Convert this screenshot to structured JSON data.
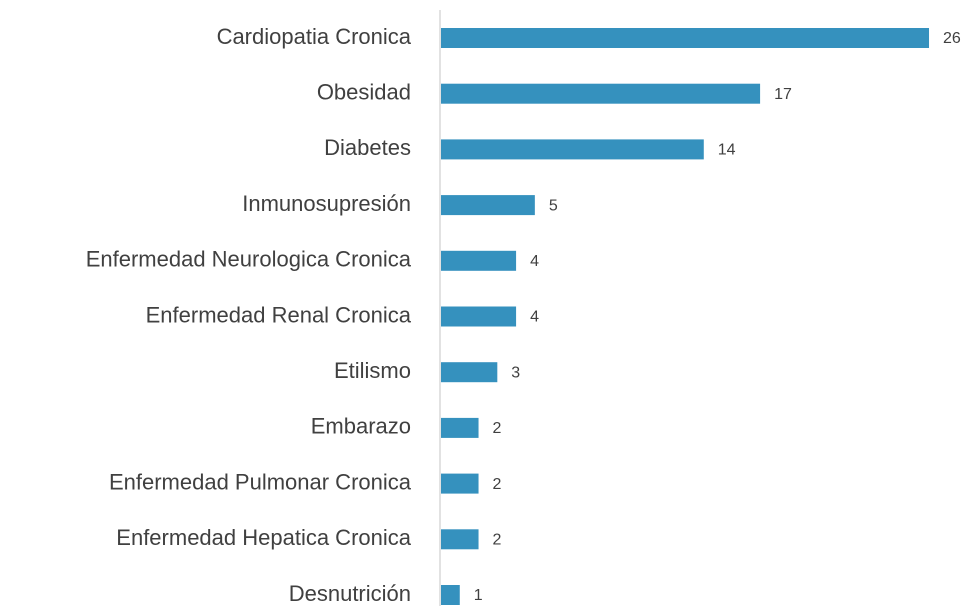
{
  "chart_data": {
    "type": "bar",
    "orientation": "horizontal",
    "categories": [
      "Cardiopatia Cronica",
      "Obesidad",
      "Diabetes",
      "Inmunosupresión",
      "Enfermedad Neurologica Cronica",
      "Enfermedad Renal Cronica",
      "Etilismo",
      "Embarazo",
      "Enfermedad Pulmonar Cronica",
      "Enfermedad Hepatica Cronica",
      "Desnutrición"
    ],
    "values": [
      26,
      17,
      14,
      5,
      4,
      4,
      3,
      2,
      2,
      2,
      1
    ],
    "color": "#3591be"
  }
}
